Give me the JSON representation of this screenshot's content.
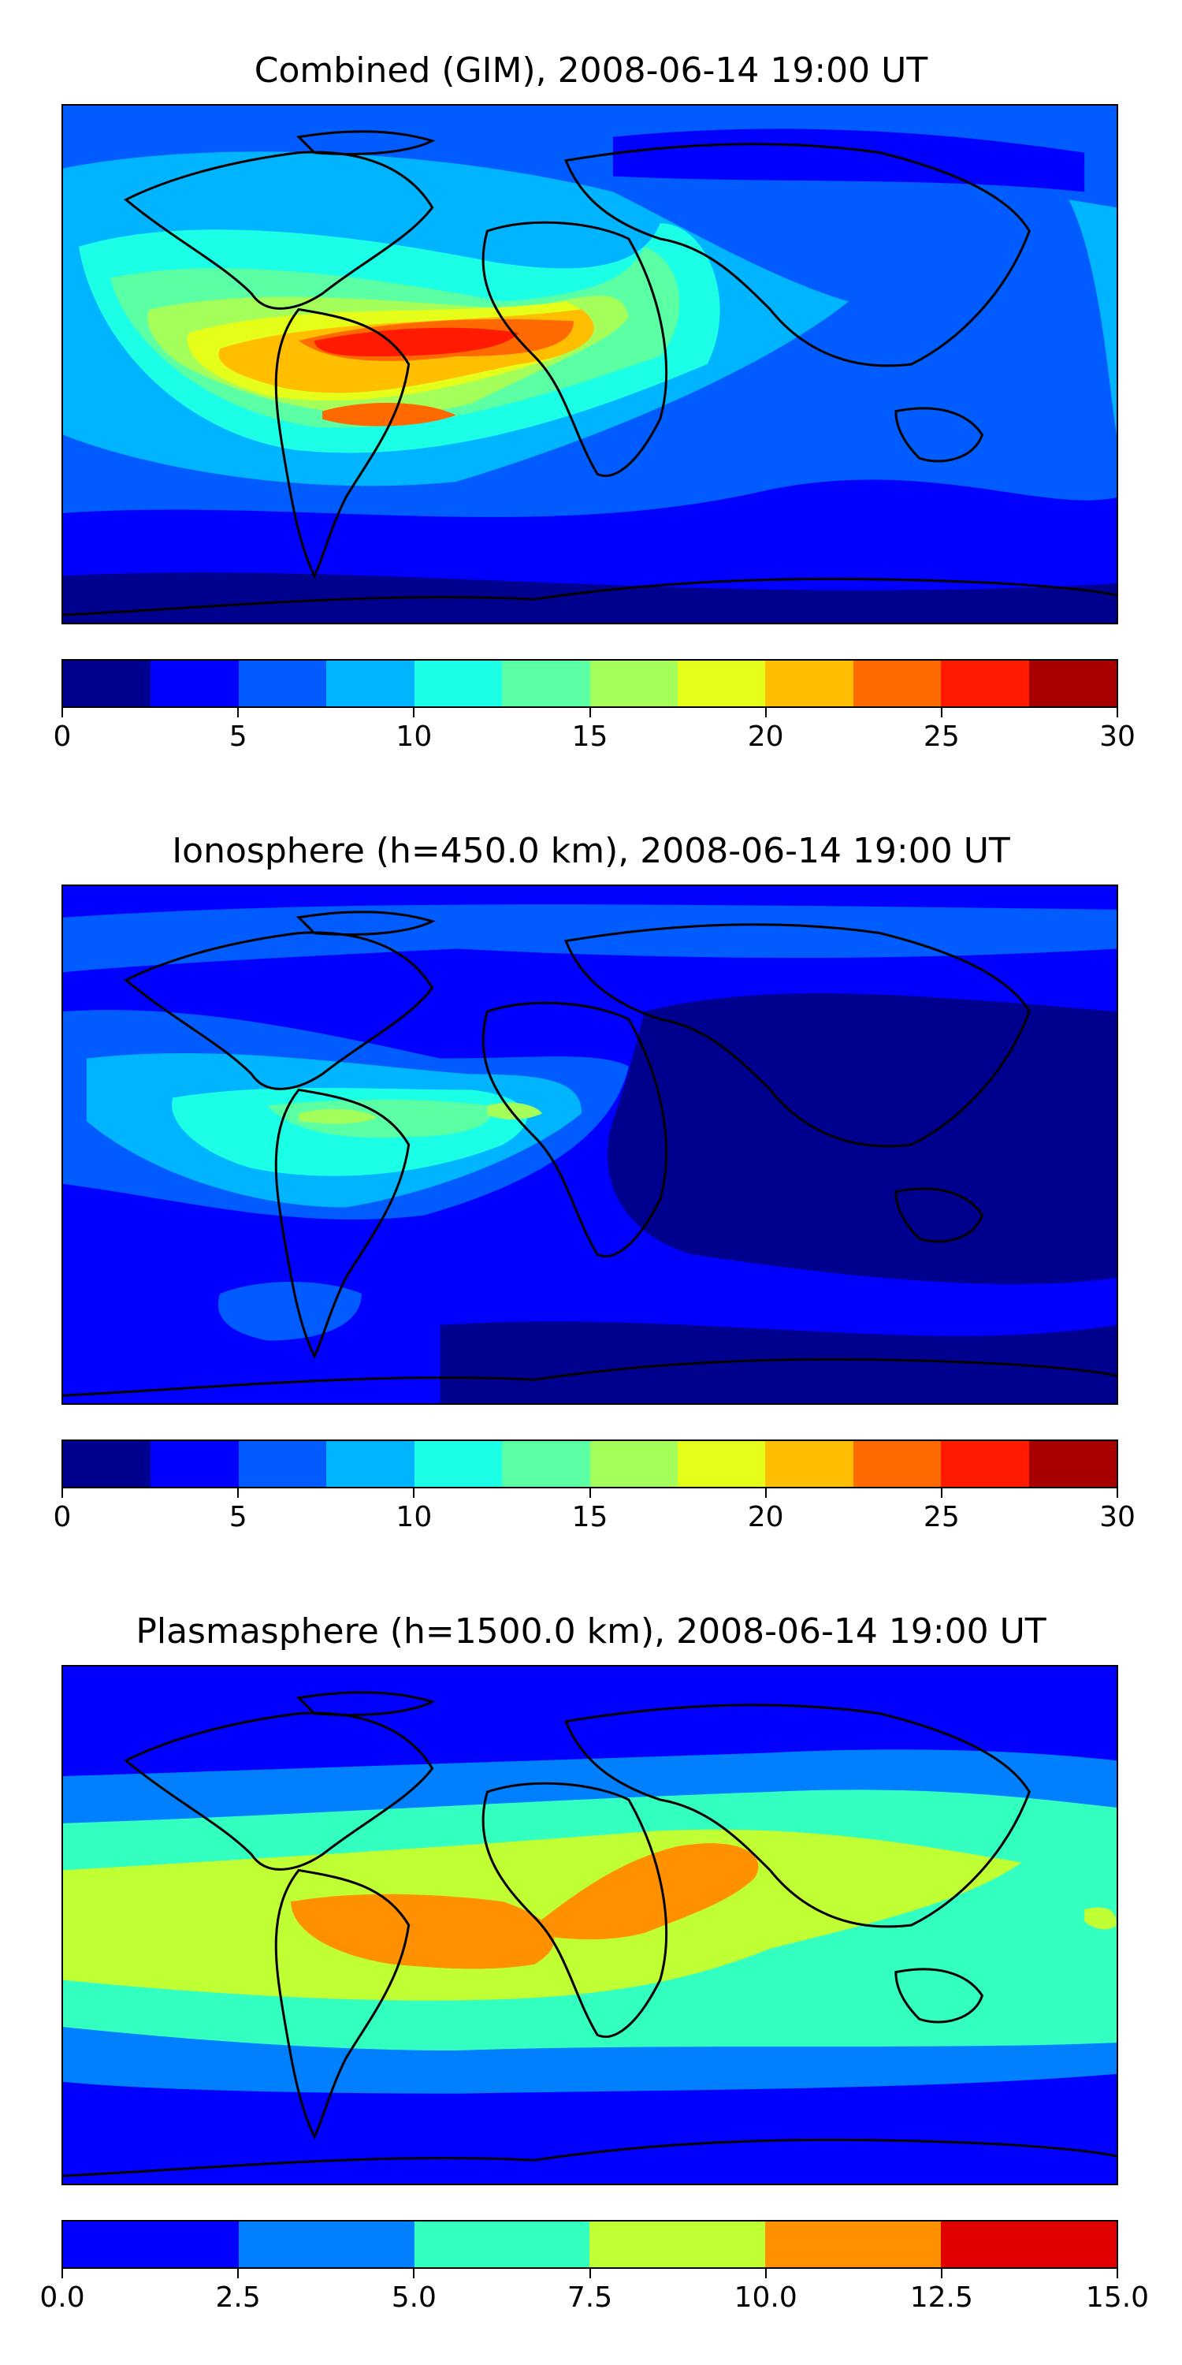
{
  "panels": [
    {
      "title": "Combined (GIM), 2008-06-14 19:00 UT",
      "colorbar": {
        "colors": [
          "#00008f",
          "#0000ff",
          "#005cff",
          "#00b4ff",
          "#1affe6",
          "#5bffa4",
          "#a4ff5b",
          "#e6ff1a",
          "#ffbf00",
          "#ff6a00",
          "#ff1a00",
          "#a80000"
        ],
        "tick_labels": [
          "0",
          "5",
          "10",
          "15",
          "20",
          "25",
          "30"
        ],
        "range": [
          0,
          30
        ]
      },
      "bg": "#005cff"
    },
    {
      "title": "Ionosphere  (h=450.0 km), 2008-06-14 19:00 UT",
      "colorbar": {
        "colors": [
          "#00008f",
          "#0000ff",
          "#005cff",
          "#00b4ff",
          "#1affe6",
          "#5bffa4",
          "#a4ff5b",
          "#e6ff1a",
          "#ffbf00",
          "#ff6a00",
          "#ff1a00",
          "#a80000"
        ],
        "tick_labels": [
          "0",
          "5",
          "10",
          "15",
          "20",
          "25",
          "30"
        ],
        "range": [
          0,
          30
        ]
      },
      "bg": "#0000ff"
    },
    {
      "title": "Plasmasphere (h=1500.0 km), 2008-06-14 19:00 UT",
      "colorbar": {
        "colors": [
          "#0000ff",
          "#0080ff",
          "#33ffc0",
          "#c0ff33",
          "#ff9000",
          "#e00000"
        ],
        "tick_labels": [
          "0.0",
          "2.5",
          "5.0",
          "7.5",
          "10.0",
          "12.5",
          "15.0"
        ],
        "range": [
          0,
          15
        ]
      },
      "bg": "#0000ff"
    }
  ]
}
